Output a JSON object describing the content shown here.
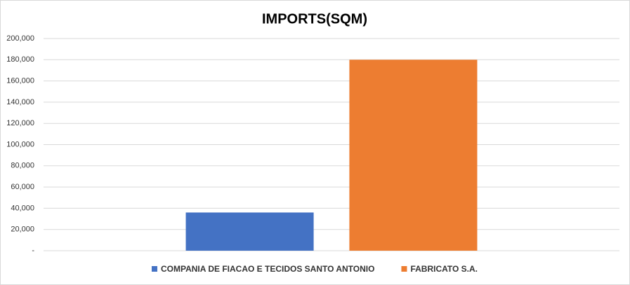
{
  "chart_data": {
    "type": "bar",
    "title": "IMPORTS(SQM)",
    "categories": [
      null
    ],
    "series": [
      {
        "name": "COMPANIA DE FIACAO E TECIDOS SANTO ANTONIO",
        "color": "#4472c4",
        "values": [
          36000
        ]
      },
      {
        "name": "FABRICATO S.A.",
        "color": "#ed7d31",
        "values": [
          180000
        ]
      }
    ],
    "ylim": [
      0,
      200000
    ],
    "yticks": [
      {
        "value": 0,
        "label": "-"
      },
      {
        "value": 20000,
        "label": "20,000"
      },
      {
        "value": 40000,
        "label": "40,000"
      },
      {
        "value": 60000,
        "label": "60,000"
      },
      {
        "value": 80000,
        "label": "80,000"
      },
      {
        "value": 100000,
        "label": "100,000"
      },
      {
        "value": 120000,
        "label": "120,000"
      },
      {
        "value": 140000,
        "label": "140,000"
      },
      {
        "value": 160000,
        "label": "160,000"
      },
      {
        "value": 180000,
        "label": "180,000"
      },
      {
        "value": 200000,
        "label": "200,000"
      }
    ],
    "grid": true,
    "legend": "bottom"
  }
}
